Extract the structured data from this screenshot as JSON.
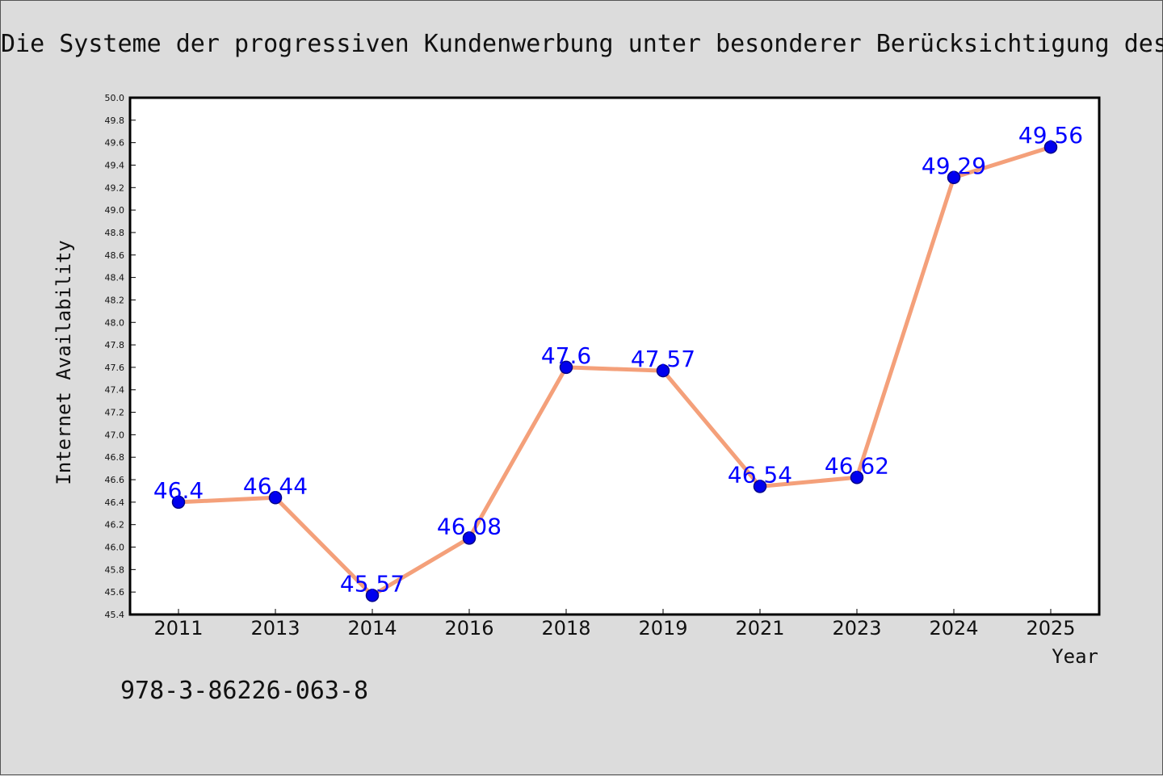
{
  "chart_data": {
    "type": "line",
    "title": "Die Systeme der progressiven Kundenwerbung unter besonderer Berücksichtigung des",
    "xlabel": "Year",
    "ylabel": "Internet Availability",
    "categories": [
      "2011",
      "2013",
      "2014",
      "2016",
      "2018",
      "2019",
      "2021",
      "2023",
      "2024",
      "2025"
    ],
    "series": [
      {
        "values": [
          46.4,
          46.44,
          45.57,
          46.08,
          47.6,
          47.57,
          46.54,
          46.62,
          49.29,
          49.56
        ],
        "labels": [
          "46.4",
          "46.44",
          "45.57",
          "46.08",
          "47.6",
          "47.57",
          "46.54",
          "46.62",
          "49.29",
          "49.56"
        ]
      }
    ],
    "ylim": [
      45.4,
      50.0
    ],
    "yticks": [
      "45.4",
      "45.6",
      "45.8",
      "46.0",
      "46.2",
      "46.4",
      "46.6",
      "46.8",
      "47.0",
      "47.2",
      "47.4",
      "47.6",
      "47.8",
      "48.0",
      "48.2",
      "48.4",
      "48.6",
      "48.8",
      "49.0",
      "49.2",
      "49.4",
      "49.6",
      "49.8",
      "50.0"
    ],
    "grid": false,
    "legend": "none",
    "colors": {
      "line": "#f4a07a",
      "marker": "#0000ee",
      "marker_edge": "#00008b",
      "data_label": "#0000ff",
      "background": "#dcdcdc",
      "plot_background": "#ffffff",
      "axis": "#000000"
    }
  },
  "footer_text": "978-3-86226-063-8"
}
